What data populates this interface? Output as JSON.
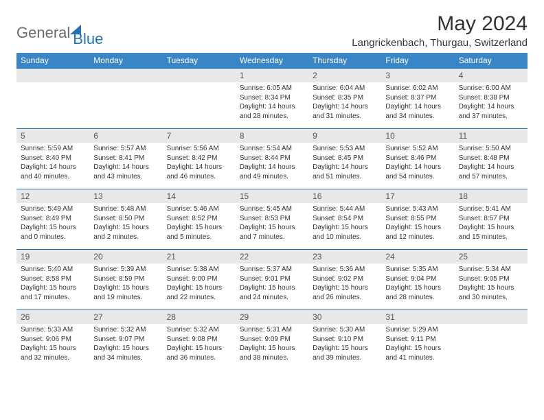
{
  "logo": {
    "word1": "General",
    "word2": "Blue"
  },
  "title": "May 2024",
  "location": "Langrickenbach, Thurgau, Switzerland",
  "colors": {
    "header_bg": "#3a85c6",
    "header_text": "#ffffff",
    "daynum_bg": "#e8e8e8",
    "border": "#2471b8",
    "logo_gray": "#6b6b6b",
    "logo_blue": "#2471b8"
  },
  "day_headers": [
    "Sunday",
    "Monday",
    "Tuesday",
    "Wednesday",
    "Thursday",
    "Friday",
    "Saturday"
  ],
  "weeks": [
    [
      {
        "n": "",
        "lines": [
          "",
          "",
          "",
          ""
        ]
      },
      {
        "n": "",
        "lines": [
          "",
          "",
          "",
          ""
        ]
      },
      {
        "n": "",
        "lines": [
          "",
          "",
          "",
          ""
        ]
      },
      {
        "n": "1",
        "lines": [
          "Sunrise: 6:05 AM",
          "Sunset: 8:34 PM",
          "Daylight: 14 hours",
          "and 28 minutes."
        ]
      },
      {
        "n": "2",
        "lines": [
          "Sunrise: 6:04 AM",
          "Sunset: 8:35 PM",
          "Daylight: 14 hours",
          "and 31 minutes."
        ]
      },
      {
        "n": "3",
        "lines": [
          "Sunrise: 6:02 AM",
          "Sunset: 8:37 PM",
          "Daylight: 14 hours",
          "and 34 minutes."
        ]
      },
      {
        "n": "4",
        "lines": [
          "Sunrise: 6:00 AM",
          "Sunset: 8:38 PM",
          "Daylight: 14 hours",
          "and 37 minutes."
        ]
      }
    ],
    [
      {
        "n": "5",
        "lines": [
          "Sunrise: 5:59 AM",
          "Sunset: 8:40 PM",
          "Daylight: 14 hours",
          "and 40 minutes."
        ]
      },
      {
        "n": "6",
        "lines": [
          "Sunrise: 5:57 AM",
          "Sunset: 8:41 PM",
          "Daylight: 14 hours",
          "and 43 minutes."
        ]
      },
      {
        "n": "7",
        "lines": [
          "Sunrise: 5:56 AM",
          "Sunset: 8:42 PM",
          "Daylight: 14 hours",
          "and 46 minutes."
        ]
      },
      {
        "n": "8",
        "lines": [
          "Sunrise: 5:54 AM",
          "Sunset: 8:44 PM",
          "Daylight: 14 hours",
          "and 49 minutes."
        ]
      },
      {
        "n": "9",
        "lines": [
          "Sunrise: 5:53 AM",
          "Sunset: 8:45 PM",
          "Daylight: 14 hours",
          "and 51 minutes."
        ]
      },
      {
        "n": "10",
        "lines": [
          "Sunrise: 5:52 AM",
          "Sunset: 8:46 PM",
          "Daylight: 14 hours",
          "and 54 minutes."
        ]
      },
      {
        "n": "11",
        "lines": [
          "Sunrise: 5:50 AM",
          "Sunset: 8:48 PM",
          "Daylight: 14 hours",
          "and 57 minutes."
        ]
      }
    ],
    [
      {
        "n": "12",
        "lines": [
          "Sunrise: 5:49 AM",
          "Sunset: 8:49 PM",
          "Daylight: 15 hours",
          "and 0 minutes."
        ]
      },
      {
        "n": "13",
        "lines": [
          "Sunrise: 5:48 AM",
          "Sunset: 8:50 PM",
          "Daylight: 15 hours",
          "and 2 minutes."
        ]
      },
      {
        "n": "14",
        "lines": [
          "Sunrise: 5:46 AM",
          "Sunset: 8:52 PM",
          "Daylight: 15 hours",
          "and 5 minutes."
        ]
      },
      {
        "n": "15",
        "lines": [
          "Sunrise: 5:45 AM",
          "Sunset: 8:53 PM",
          "Daylight: 15 hours",
          "and 7 minutes."
        ]
      },
      {
        "n": "16",
        "lines": [
          "Sunrise: 5:44 AM",
          "Sunset: 8:54 PM",
          "Daylight: 15 hours",
          "and 10 minutes."
        ]
      },
      {
        "n": "17",
        "lines": [
          "Sunrise: 5:43 AM",
          "Sunset: 8:55 PM",
          "Daylight: 15 hours",
          "and 12 minutes."
        ]
      },
      {
        "n": "18",
        "lines": [
          "Sunrise: 5:41 AM",
          "Sunset: 8:57 PM",
          "Daylight: 15 hours",
          "and 15 minutes."
        ]
      }
    ],
    [
      {
        "n": "19",
        "lines": [
          "Sunrise: 5:40 AM",
          "Sunset: 8:58 PM",
          "Daylight: 15 hours",
          "and 17 minutes."
        ]
      },
      {
        "n": "20",
        "lines": [
          "Sunrise: 5:39 AM",
          "Sunset: 8:59 PM",
          "Daylight: 15 hours",
          "and 19 minutes."
        ]
      },
      {
        "n": "21",
        "lines": [
          "Sunrise: 5:38 AM",
          "Sunset: 9:00 PM",
          "Daylight: 15 hours",
          "and 22 minutes."
        ]
      },
      {
        "n": "22",
        "lines": [
          "Sunrise: 5:37 AM",
          "Sunset: 9:01 PM",
          "Daylight: 15 hours",
          "and 24 minutes."
        ]
      },
      {
        "n": "23",
        "lines": [
          "Sunrise: 5:36 AM",
          "Sunset: 9:02 PM",
          "Daylight: 15 hours",
          "and 26 minutes."
        ]
      },
      {
        "n": "24",
        "lines": [
          "Sunrise: 5:35 AM",
          "Sunset: 9:04 PM",
          "Daylight: 15 hours",
          "and 28 minutes."
        ]
      },
      {
        "n": "25",
        "lines": [
          "Sunrise: 5:34 AM",
          "Sunset: 9:05 PM",
          "Daylight: 15 hours",
          "and 30 minutes."
        ]
      }
    ],
    [
      {
        "n": "26",
        "lines": [
          "Sunrise: 5:33 AM",
          "Sunset: 9:06 PM",
          "Daylight: 15 hours",
          "and 32 minutes."
        ]
      },
      {
        "n": "27",
        "lines": [
          "Sunrise: 5:32 AM",
          "Sunset: 9:07 PM",
          "Daylight: 15 hours",
          "and 34 minutes."
        ]
      },
      {
        "n": "28",
        "lines": [
          "Sunrise: 5:32 AM",
          "Sunset: 9:08 PM",
          "Daylight: 15 hours",
          "and 36 minutes."
        ]
      },
      {
        "n": "29",
        "lines": [
          "Sunrise: 5:31 AM",
          "Sunset: 9:09 PM",
          "Daylight: 15 hours",
          "and 38 minutes."
        ]
      },
      {
        "n": "30",
        "lines": [
          "Sunrise: 5:30 AM",
          "Sunset: 9:10 PM",
          "Daylight: 15 hours",
          "and 39 minutes."
        ]
      },
      {
        "n": "31",
        "lines": [
          "Sunrise: 5:29 AM",
          "Sunset: 9:11 PM",
          "Daylight: 15 hours",
          "and 41 minutes."
        ]
      },
      {
        "n": "",
        "lines": [
          "",
          "",
          "",
          ""
        ]
      }
    ]
  ]
}
